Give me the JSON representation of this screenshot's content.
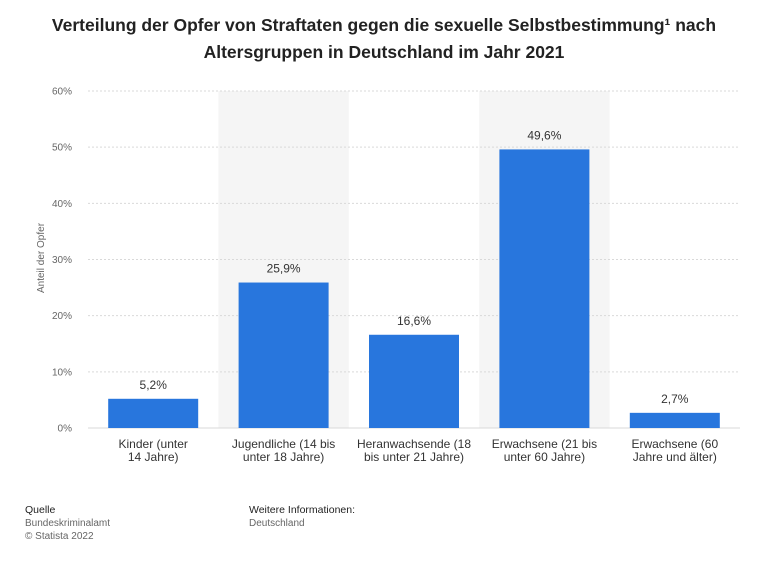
{
  "header": {
    "title_line1": "Verteilung der Opfer von Straftaten gegen die sexuelle Selbstbestimmung¹ nach",
    "title_line2": "Altersgruppen in Deutschland im Jahr 2021"
  },
  "chart_data": {
    "type": "bar",
    "categories": [
      [
        "Kinder (unter",
        "14 Jahre)"
      ],
      [
        "Jugendliche (14 bis",
        "unter 18 Jahre)"
      ],
      [
        "Heranwachsende (18",
        "bis unter 21 Jahre)"
      ],
      [
        "Erwachsene (21 bis",
        "unter 60 Jahre)"
      ],
      [
        "Erwachsene (60",
        "Jahre und älter)"
      ]
    ],
    "values": [
      5.2,
      25.9,
      16.6,
      49.6,
      2.7
    ],
    "value_labels": [
      "5,2%",
      "25,9%",
      "16,6%",
      "49,6%",
      "2,7%"
    ],
    "ylabel": "Anteil der Opfer",
    "ylim": [
      0,
      60
    ],
    "yticks": [
      0,
      10,
      20,
      30,
      40,
      50,
      60
    ],
    "ytick_labels": [
      "0%",
      "10%",
      "20%",
      "30%",
      "40%",
      "50%",
      "60%"
    ],
    "grid": true,
    "bar_color": "#2876dd",
    "band_color": "#f5f5f5",
    "grid_color": "#d9d9d9"
  },
  "footer": {
    "source_heading": "Quelle",
    "source_lines": [
      "Bundeskriminalamt",
      "© Statista 2022"
    ],
    "info_heading": "Weitere Informationen:",
    "info_lines": [
      "Deutschland"
    ]
  }
}
